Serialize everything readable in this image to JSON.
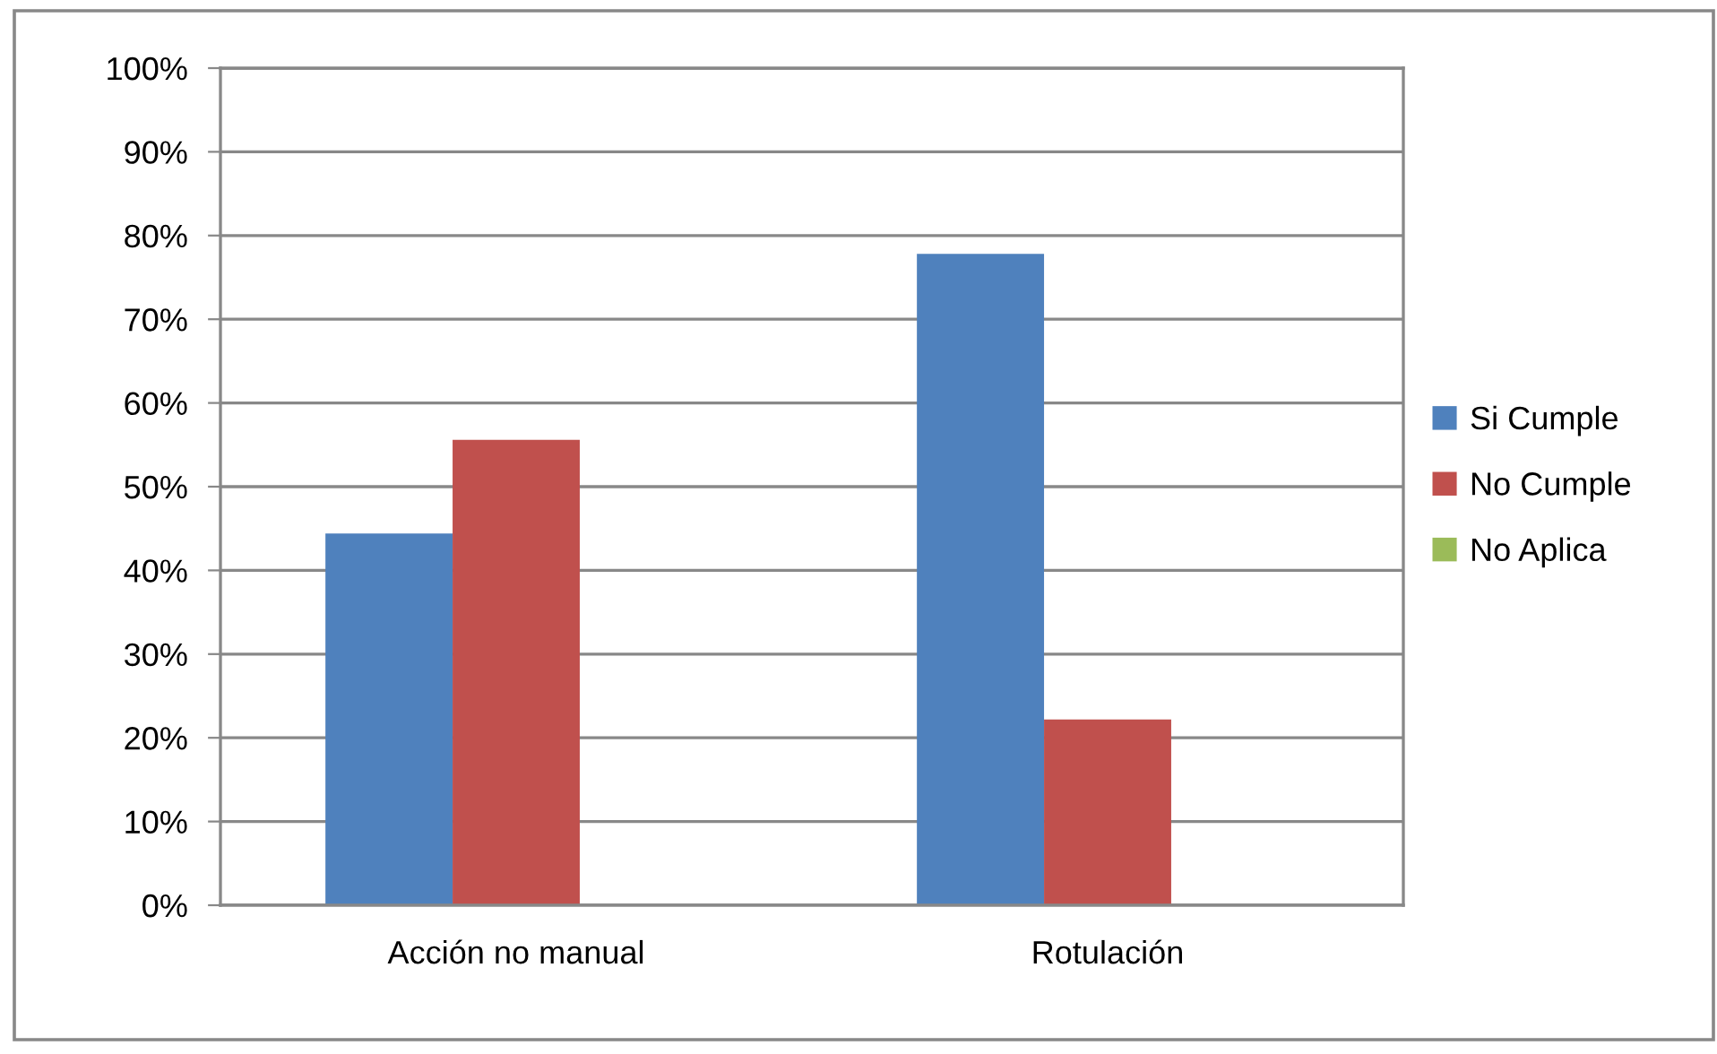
{
  "chart_data": {
    "type": "bar",
    "categories": [
      "Acción no manual",
      "Rotulación"
    ],
    "series": [
      {
        "name": "Si Cumple",
        "color": "#4f81bd",
        "values": [
          44.4,
          77.8
        ]
      },
      {
        "name": "No Cumple",
        "color": "#c0504d",
        "values": [
          55.6,
          22.2
        ]
      },
      {
        "name": "No Aplica",
        "color": "#9bbb59",
        "values": [
          0,
          0
        ]
      }
    ],
    "ylim": [
      0,
      100
    ],
    "yticks": [
      {
        "value": 0,
        "label": "0%"
      },
      {
        "value": 10,
        "label": "10%"
      },
      {
        "value": 20,
        "label": "20%"
      },
      {
        "value": 30,
        "label": "30%"
      },
      {
        "value": 40,
        "label": "40%"
      },
      {
        "value": 50,
        "label": "50%"
      },
      {
        "value": 60,
        "label": "60%"
      },
      {
        "value": 70,
        "label": "70%"
      },
      {
        "value": 80,
        "label": "80%"
      },
      {
        "value": 90,
        "label": "90%"
      },
      {
        "value": 100,
        "label": "100%"
      }
    ],
    "grid": "y",
    "legend": "right"
  }
}
